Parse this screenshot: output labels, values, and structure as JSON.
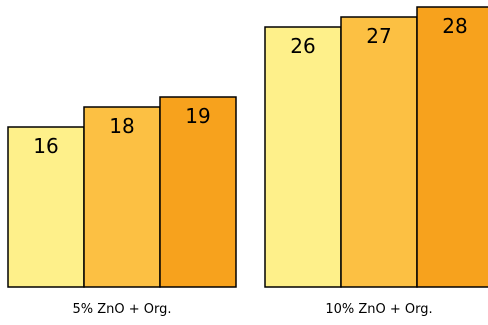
{
  "chart_data": {
    "type": "bar",
    "categories": [
      "5% ZnO + Org.",
      "10% ZnO + Org."
    ],
    "series": [
      {
        "values": [
          16,
          26
        ],
        "color": "#FEF08A"
      },
      {
        "values": [
          18,
          27
        ],
        "color": "#FCC043"
      },
      {
        "values": [
          19,
          28
        ],
        "color": "#F7A21D"
      }
    ],
    "data_labels": true,
    "axes_visible": false,
    "grid": false,
    "legend": "none"
  }
}
